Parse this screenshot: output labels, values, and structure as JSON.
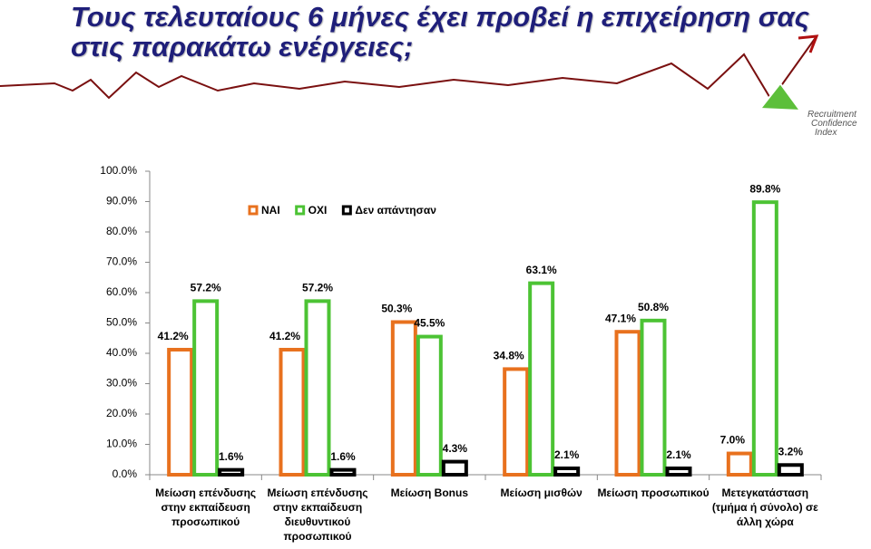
{
  "title": "Τους τελευταίους 6 μήνες έχει προβεί η επιχείρηση σας στις παρακάτω ενέργειες;",
  "logo": [
    "Recruitment",
    "Confidence",
    "Index"
  ],
  "chart_data": {
    "type": "bar",
    "categories": [
      "Μείωση επένδυσης στην εκπαίδευση προσωπικού",
      "Μείωση επένδυσης στην εκπαίδευση διευθυντικού προσωπικού",
      "Μείωση Bonus",
      "Μείωση μισθών",
      "Μείωση προσωπικού",
      "Μετεγκατάσταση (τμήμα ή σύνολο) σε άλλη χώρα"
    ],
    "series": [
      {
        "name": "ΝΑΙ",
        "color": "#e8711e",
        "values": [
          41.2,
          41.2,
          50.3,
          34.8,
          47.1,
          7.0
        ],
        "value_labels": [
          "41.2%",
          "41.2%",
          "50.3%",
          "34.8%",
          "47.1%",
          "7.0%"
        ]
      },
      {
        "name": "ΟΧΙ",
        "color": "#4cc334",
        "values": [
          57.2,
          57.2,
          45.5,
          63.1,
          50.8,
          89.8
        ],
        "value_labels": [
          "57.2%",
          "57.2%",
          "45.5%",
          "63.1%",
          "50.8%",
          "89.8%"
        ]
      },
      {
        "name": "Δεν απάντησαν",
        "color": "#000000",
        "values": [
          1.6,
          1.6,
          4.3,
          2.1,
          2.1,
          3.2
        ],
        "value_labels": [
          "1.6%",
          "1.6%",
          "4.3%",
          "2.1%",
          "2.1%",
          "3.2%"
        ]
      }
    ],
    "ylim": [
      0,
      100
    ],
    "yticks": [
      {
        "value": 0,
        "label": "0.0%"
      },
      {
        "value": 10,
        "label": "10.0%"
      },
      {
        "value": 20,
        "label": "20.0%"
      },
      {
        "value": 30,
        "label": "30.0%"
      },
      {
        "value": 40,
        "label": "40.0%"
      },
      {
        "value": 50,
        "label": "50.0%"
      },
      {
        "value": 60,
        "label": "60.0%"
      },
      {
        "value": 70,
        "label": "70.0%"
      },
      {
        "value": 80,
        "label": "80.0%"
      },
      {
        "value": 90,
        "label": "90.0%"
      },
      {
        "value": 100,
        "label": "100.0%"
      }
    ]
  }
}
